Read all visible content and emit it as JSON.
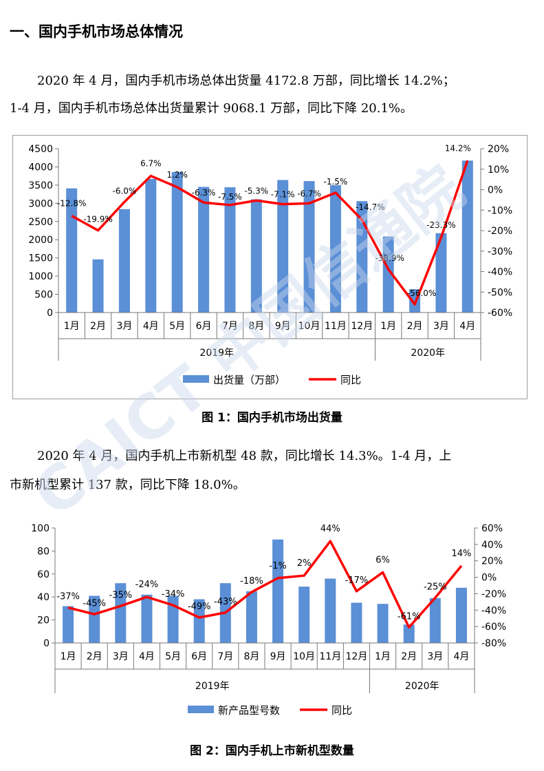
{
  "section_title": "一、国内手机市场总体情况",
  "para1": {
    "line1": "2020 年 4 月，国内手机市场总体出货量 4172.8 万部，同比增长 14.2%；",
    "line2": "1-4 月，国内手机市场总体出货量累计 9068.1 万部，同比下降 20.1%。"
  },
  "para2": {
    "line1": "2020 年 4 月，国内手机上市新机型 48 款，同比增长 14.3%。1-4 月，上",
    "line2": "市新机型累计 137 款，同比下降 18.0%。"
  },
  "caption1": "图 1：国内手机市场出货量",
  "caption2": "图 2：国内手机上市新机型数量",
  "watermark": "CAICT 中国信通院",
  "colors": {
    "bar": "#5b8fd6",
    "line": "#ff0000"
  },
  "chart_data": [
    {
      "type": "bar",
      "categories": [
        "1月",
        "2月",
        "3月",
        "4月",
        "5月",
        "6月",
        "7月",
        "8月",
        "9月",
        "10月",
        "11月",
        "12月",
        "1月",
        "2月",
        "3月",
        "4月"
      ],
      "groups": [
        {
          "label": "2019年",
          "span": 12
        },
        {
          "label": "2020年",
          "span": 4
        }
      ],
      "series": [
        {
          "name": "出货量（万部）",
          "type": "bar",
          "axis": "left",
          "values": [
            3410,
            1460,
            2840,
            3670,
            3860,
            3450,
            3440,
            3110,
            3640,
            3610,
            3500,
            3060,
            2090,
            640,
            2180,
            4172.8
          ]
        },
        {
          "name": "同比",
          "type": "line",
          "axis": "right",
          "values": [
            -12.8,
            -19.9,
            -6.0,
            6.7,
            1.2,
            -6.3,
            -7.5,
            -5.3,
            -7.1,
            -6.7,
            -1.5,
            -14.7,
            -38.9,
            -56.0,
            -23.3,
            14.2
          ],
          "labels": [
            "-12.8%",
            "-19.9%",
            "-6.0%",
            "6.7%",
            "1.2%",
            "-6.3%",
            "-7.5%",
            "-5.3%",
            "-7.1%",
            "-6.7%",
            "-1.5%",
            "-14.7%",
            "-38.9%",
            "-56.0%",
            "-23.3%",
            "14.2%"
          ]
        }
      ],
      "left_ticks": [
        "4500",
        "4000",
        "3500",
        "3000",
        "2500",
        "2000",
        "1500",
        "1000",
        "500",
        "0"
      ],
      "right_ticks": [
        "20%",
        "10%",
        "0%",
        "-10%",
        "-20%",
        "-30%",
        "-40%",
        "-50%",
        "-60%"
      ],
      "ylim": [
        0,
        4500
      ],
      "y2lim": [
        -60,
        20
      ],
      "legend": "bottom"
    },
    {
      "type": "bar",
      "categories": [
        "1月",
        "2月",
        "3月",
        "4月",
        "5月",
        "6月",
        "7月",
        "8月",
        "9月",
        "10月",
        "11月",
        "12月",
        "1月",
        "2月",
        "3月",
        "4月"
      ],
      "groups": [
        {
          "label": "2019年",
          "span": 12
        },
        {
          "label": "2020年",
          "span": 4
        }
      ],
      "series": [
        {
          "name": "新产品型号数",
          "type": "bar",
          "axis": "left",
          "values": [
            32,
            41,
            52,
            42,
            41,
            38,
            52,
            45,
            90,
            49,
            56,
            35,
            34,
            16,
            39,
            48
          ]
        },
        {
          "name": "同比",
          "type": "line",
          "axis": "right",
          "values": [
            -37,
            -45,
            -35,
            -24,
            -34,
            -49,
            -43,
            -18,
            -1,
            2,
            44,
            -17,
            6,
            -61,
            -25,
            14
          ],
          "labels": [
            "-37%",
            "-45%",
            "-35%",
            "-24%",
            "-34%",
            "-49%",
            "-43%",
            "-18%",
            "-1%",
            "2%",
            "44%",
            "-17%",
            "6%",
            "-61%",
            "-25%",
            "14%"
          ]
        }
      ],
      "left_ticks": [
        "100",
        "80",
        "60",
        "40",
        "20",
        "0"
      ],
      "right_ticks": [
        "60%",
        "40%",
        "20%",
        "0%",
        "-20%",
        "-40%",
        "-60%",
        "-80%"
      ],
      "ylim": [
        0,
        100
      ],
      "y2lim": [
        -80,
        60
      ],
      "legend": "bottom"
    }
  ]
}
